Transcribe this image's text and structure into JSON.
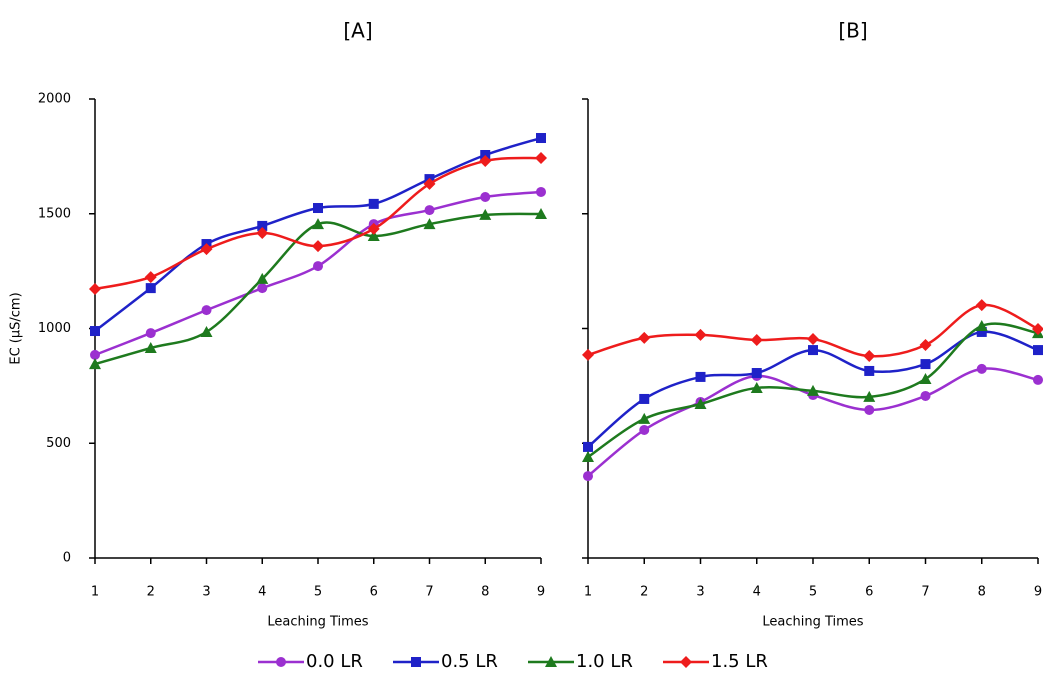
{
  "chart_data": [
    {
      "type": "line",
      "title": "[A]",
      "y_label": "EC (µS/cm)",
      "x_label": "Leaching Times",
      "x": [
        1,
        2,
        3,
        4,
        5,
        6,
        7,
        8,
        9
      ],
      "xlim": [
        1,
        9
      ],
      "xticks": [
        1,
        2,
        3,
        4,
        5,
        6,
        7,
        8,
        9
      ],
      "ylim": [
        0,
        2000
      ],
      "yticks": [
        0,
        500,
        1000,
        1500,
        2000
      ],
      "ytick_labels": true,
      "series": [
        {
          "name": "0.0 LR",
          "color": "#9b30d0",
          "marker": "circle",
          "values": [
            885,
            980,
            1080,
            1176,
            1272,
            1455,
            1516,
            1573,
            1595
          ]
        },
        {
          "name": "0.5 LR",
          "color": "#1f22c8",
          "marker": "square",
          "values": [
            989,
            1176,
            1368,
            1447,
            1525,
            1543,
            1651,
            1756,
            1830
          ]
        },
        {
          "name": "1.0 LR",
          "color": "#1e7a1e",
          "marker": "triangle",
          "values": [
            845,
            915,
            985,
            1216,
            1455,
            1403,
            1455,
            1495,
            1499
          ]
        },
        {
          "name": "1.5 LR",
          "color": "#ee1c1c",
          "marker": "diamond",
          "values": [
            1172,
            1224,
            1346,
            1416,
            1359,
            1434,
            1630,
            1730,
            1743
          ]
        }
      ]
    },
    {
      "type": "line",
      "title": "[B]",
      "x_label": "Leaching Times",
      "x": [
        1,
        2,
        3,
        4,
        5,
        6,
        7,
        8,
        9
      ],
      "xlim": [
        1,
        9
      ],
      "xticks": [
        1,
        2,
        3,
        4,
        5,
        6,
        7,
        8,
        9
      ],
      "ylim": [
        0,
        2000
      ],
      "yticks": [
        0,
        500,
        1000,
        1500,
        2000
      ],
      "ytick_labels": false,
      "series": [
        {
          "color": "#9b30d0",
          "marker": "circle",
          "values": [
            357,
            558,
            680,
            793,
            710,
            645,
            706,
            824,
            776
          ]
        },
        {
          "color": "#1f22c8",
          "marker": "square",
          "values": [
            484,
            693,
            789,
            806,
            906,
            815,
            845,
            985,
            906
          ]
        },
        {
          "color": "#1e7a1e",
          "marker": "triangle",
          "values": [
            440,
            606,
            671,
            741,
            728,
            702,
            780,
            1011,
            980
          ]
        },
        {
          "color": "#ee1c1c",
          "marker": "diamond",
          "values": [
            885,
            959,
            972,
            950,
            954,
            880,
            928,
            1102,
            998
          ]
        }
      ]
    }
  ]
}
